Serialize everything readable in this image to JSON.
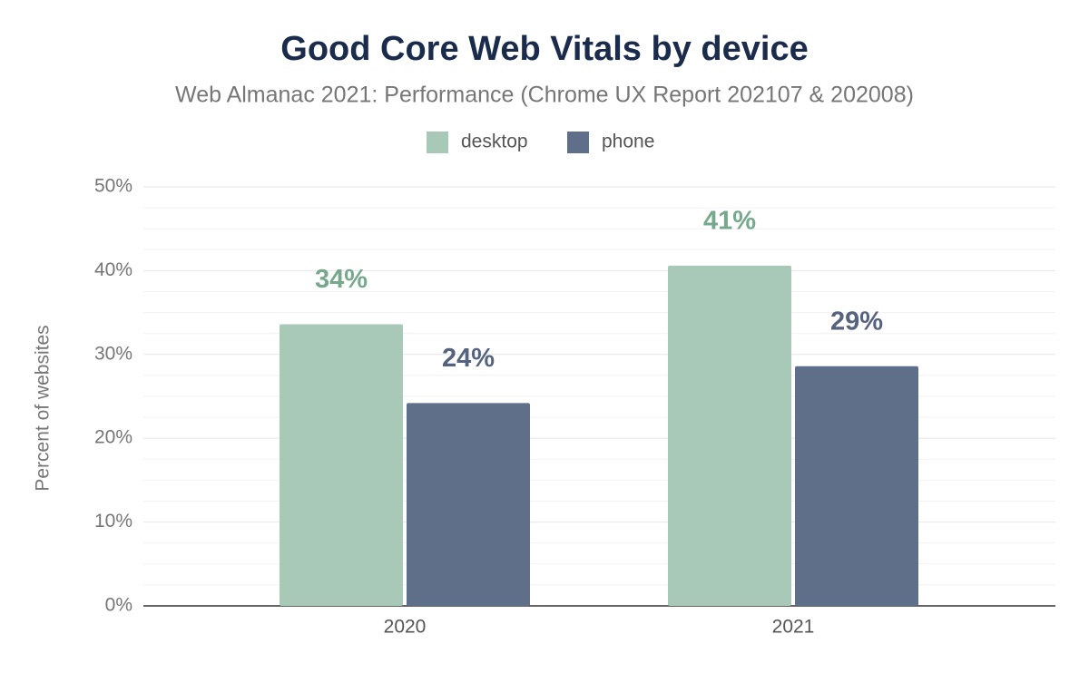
{
  "chart_data": {
    "type": "bar",
    "title": "Good Core Web Vitals by device",
    "subtitle": "Web Almanac 2021: Performance (Chrome UX Report 202107 & 202008)",
    "y_label": "Percent of websites",
    "categories": [
      "2020",
      "2021"
    ],
    "series": [
      {
        "name": "desktop",
        "color": "#a8c8b8",
        "values": [
          33.6,
          40.6
        ],
        "value_labels": [
          "34%",
          "41%"
        ]
      },
      {
        "name": "phone",
        "color": "#5f6f8a",
        "values": [
          24.2,
          28.6
        ],
        "value_labels": [
          "24%",
          "29%"
        ]
      }
    ],
    "ylim": [
      0,
      50
    ],
    "yticks": [
      {
        "value": 0,
        "label": "0%"
      },
      {
        "value": 10,
        "label": "10%"
      },
      {
        "value": 20,
        "label": "20%"
      },
      {
        "value": 30,
        "label": "30%"
      },
      {
        "value": 40,
        "label": "40%"
      },
      {
        "value": 50,
        "label": "50%"
      }
    ],
    "minor_yticks": [
      2.5,
      5,
      7.5,
      12.5,
      15,
      17.5,
      22.5,
      25,
      27.5,
      32.5,
      35,
      37.5,
      42.5,
      45,
      47.5
    ],
    "grid": true,
    "legend": "top"
  }
}
